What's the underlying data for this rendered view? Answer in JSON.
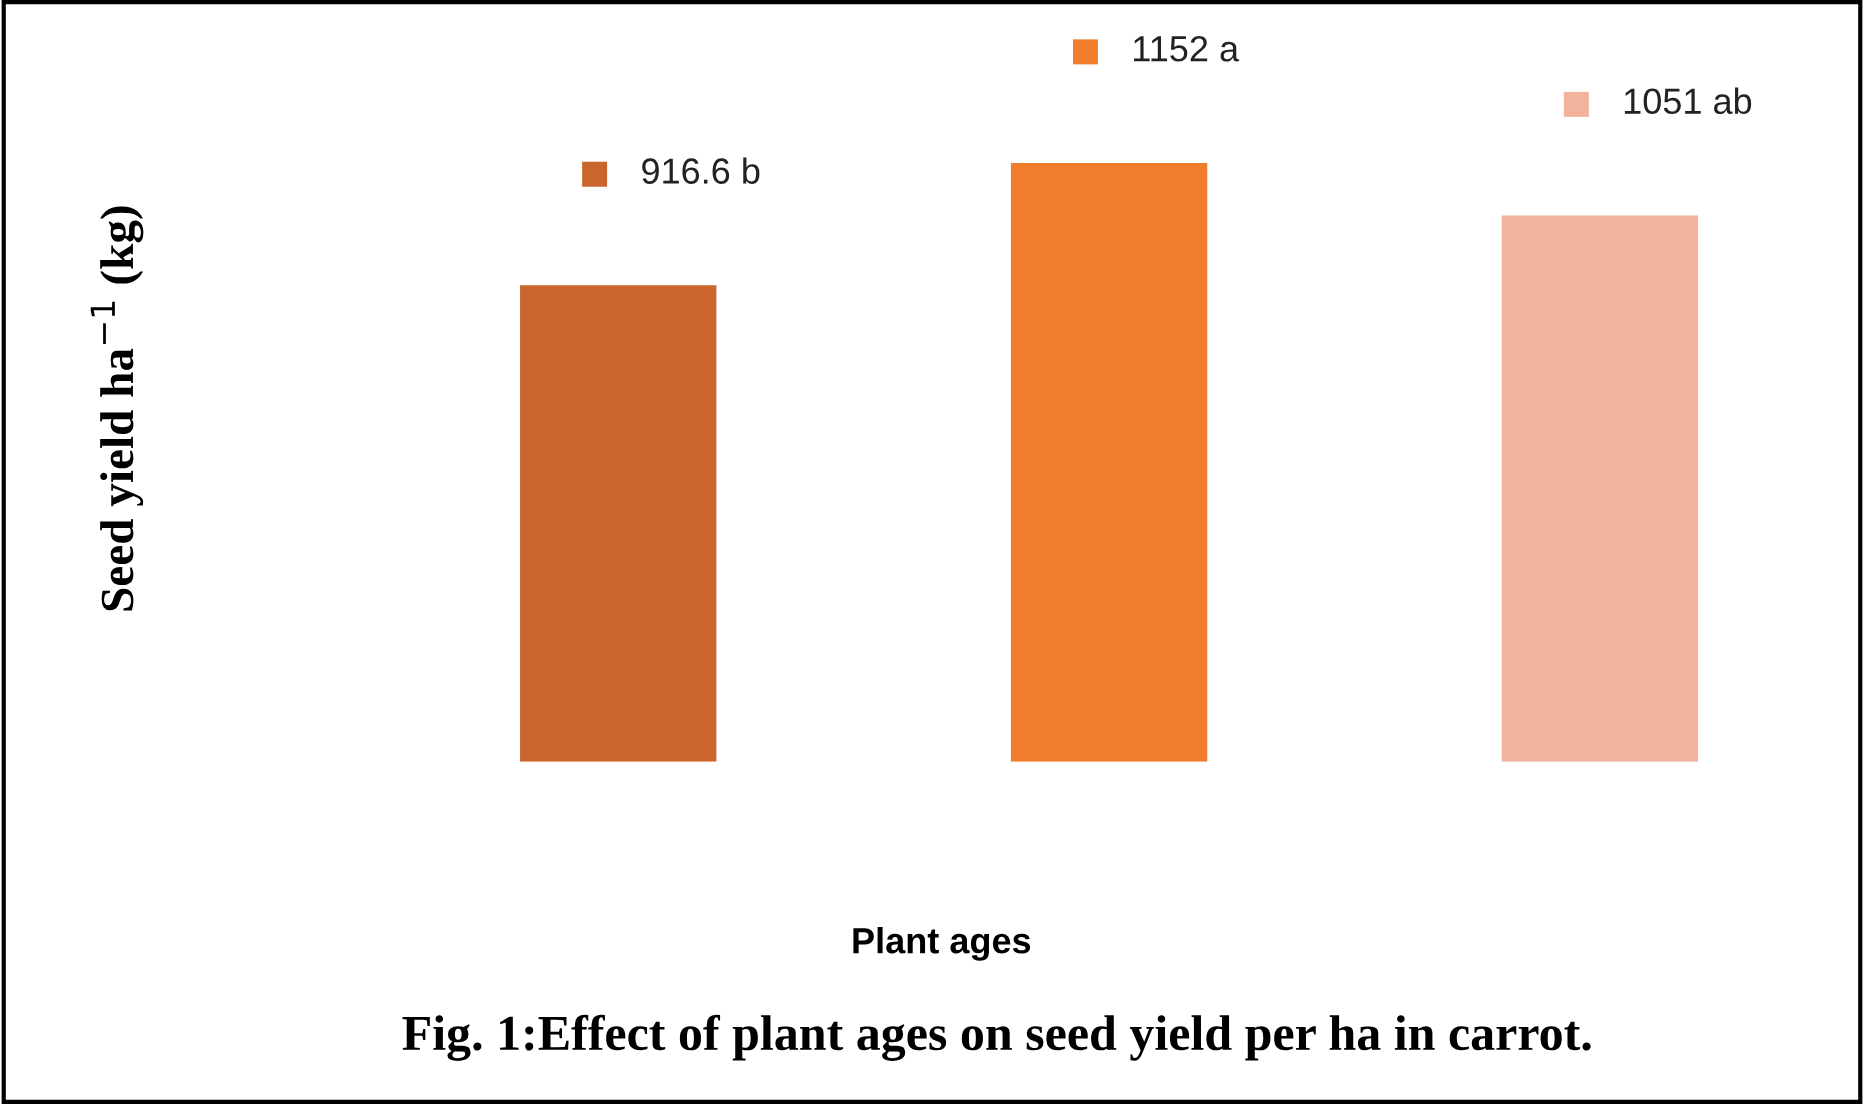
{
  "chart_data": {
    "type": "bar",
    "title": "Fig. 1:Effect of plant ages on seed yield per ha in carrot.",
    "xlabel": "Plant ages",
    "ylabel": "Seed yield ha$^{−1}$ (kg)",
    "categories": [
      null,
      null,
      null
    ],
    "values": [
      916.6,
      1152,
      1051
    ],
    "colors": [
      "#c9652d",
      "#f07d2e",
      "#f2b29c"
    ],
    "value_labels": [
      "916.6 b",
      "1152 a",
      "1051 ab"
    ],
    "grid": false,
    "legend": false
  }
}
